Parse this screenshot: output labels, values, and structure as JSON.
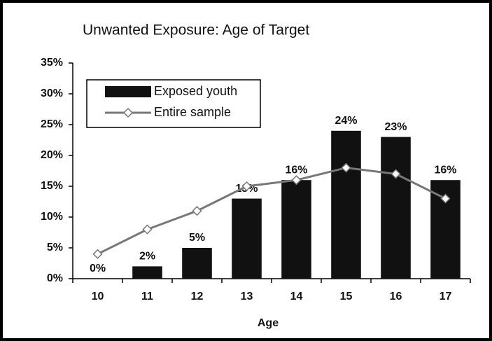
{
  "chart_data": {
    "type": "bar_line",
    "title": "Unwanted Exposure: Age of Target",
    "x_label": "Age",
    "categories": [
      "10",
      "11",
      "12",
      "13",
      "14",
      "15",
      "16",
      "17"
    ],
    "series": [
      {
        "name": "Exposed youth",
        "type": "bar",
        "color": "#111111",
        "values": [
          0,
          2,
          5,
          13,
          16,
          24,
          23,
          16
        ],
        "value_labels": [
          "0%",
          "2%",
          "5%",
          "13%",
          "16%",
          "24%",
          "23%",
          "16%"
        ]
      },
      {
        "name": "Entire sample",
        "type": "line",
        "color": "#777777",
        "values": [
          4,
          8,
          11,
          15,
          16,
          18,
          17,
          13
        ]
      }
    ],
    "ylim": [
      0,
      35
    ],
    "yticks": [
      {
        "value": 0,
        "label": "0%"
      },
      {
        "value": 5,
        "label": "5%"
      },
      {
        "value": 10,
        "label": "10%"
      },
      {
        "value": 15,
        "label": "15%"
      },
      {
        "value": 20,
        "label": "20%"
      },
      {
        "value": 25,
        "label": "25%"
      },
      {
        "value": 30,
        "label": "30%"
      },
      {
        "value": 35,
        "label": "35%"
      }
    ],
    "legend": "upper left"
  }
}
